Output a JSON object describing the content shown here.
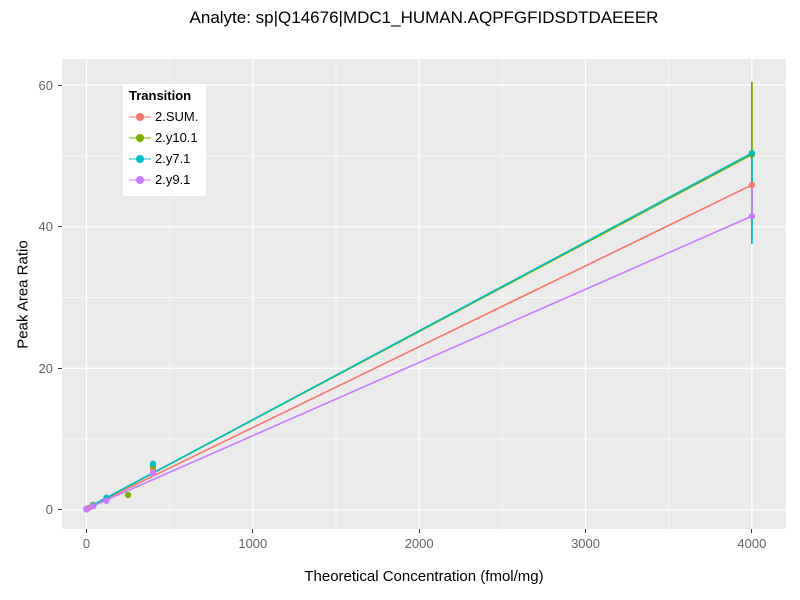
{
  "chart_data": {
    "type": "line",
    "title": "Analyte: sp|Q14676|MDC1_HUMAN.AQPFGFIDSDTDAEEER",
    "xlabel": "Theoretical Concentration (fmol/mg)",
    "ylabel": "Peak Area Ratio",
    "xlim": [
      -147,
      4205
    ],
    "ylim": [
      -2.7,
      63.7
    ],
    "x_ticks": [
      0,
      1000,
      2000,
      3000,
      4000
    ],
    "x_minor_ticks": [
      500,
      1500,
      2500,
      3500
    ],
    "y_ticks": [
      0,
      20,
      40,
      60
    ],
    "y_minor_ticks": [
      10,
      30,
      50
    ],
    "grid": "on",
    "panel_background": "#EBEBEB",
    "grid_major_color": "#FFFFFF",
    "grid_minor_color": "#FFFFFF",
    "tick_label_color": "#666666",
    "legend": {
      "title": "Transition",
      "position": "inside-top-left"
    },
    "series": [
      {
        "name": "2.SUM.",
        "color": "#F8766D",
        "line": {
          "x": [
            0,
            4000
          ],
          "y": [
            0.2,
            45.9
          ]
        },
        "points": {
          "x": [
            0,
            15,
            40,
            120,
            400,
            4000
          ],
          "y": [
            0.15,
            0.3,
            0.6,
            1.5,
            5.8,
            45.9
          ]
        },
        "error_bars": []
      },
      {
        "name": "2.y10.1",
        "color": "#7CAE00",
        "line": {
          "x": [
            0,
            4000
          ],
          "y": [
            0.2,
            50.2
          ]
        },
        "points": {
          "x": [
            0,
            40,
            250,
            400,
            4000
          ],
          "y": [
            0.1,
            0.7,
            2.1,
            6.2,
            50.2
          ]
        },
        "error_bars": [
          {
            "x": 4000,
            "low": 40.2,
            "high": 60.5
          }
        ]
      },
      {
        "name": "2.y7.1",
        "color": "#00BFC4",
        "line": {
          "x": [
            0,
            4000
          ],
          "y": [
            0.2,
            50.4
          ]
        },
        "points": {
          "x": [
            0,
            40,
            120,
            400,
            4000
          ],
          "y": [
            0.1,
            0.6,
            1.7,
            6.5,
            50.4
          ]
        },
        "error_bars": [
          {
            "x": 4000,
            "low": 37.6,
            "high": 50.4
          }
        ]
      },
      {
        "name": "2.y9.1",
        "color": "#C77CFF",
        "line": {
          "x": [
            0,
            4000
          ],
          "y": [
            0.15,
            41.5
          ]
        },
        "points": {
          "x": [
            0,
            40,
            120,
            400,
            4000
          ],
          "y": [
            0.1,
            0.5,
            1.3,
            5.2,
            41.5
          ]
        },
        "error_bars": [
          {
            "x": 4000,
            "low": 41.5,
            "high": 45.9
          }
        ]
      }
    ]
  }
}
